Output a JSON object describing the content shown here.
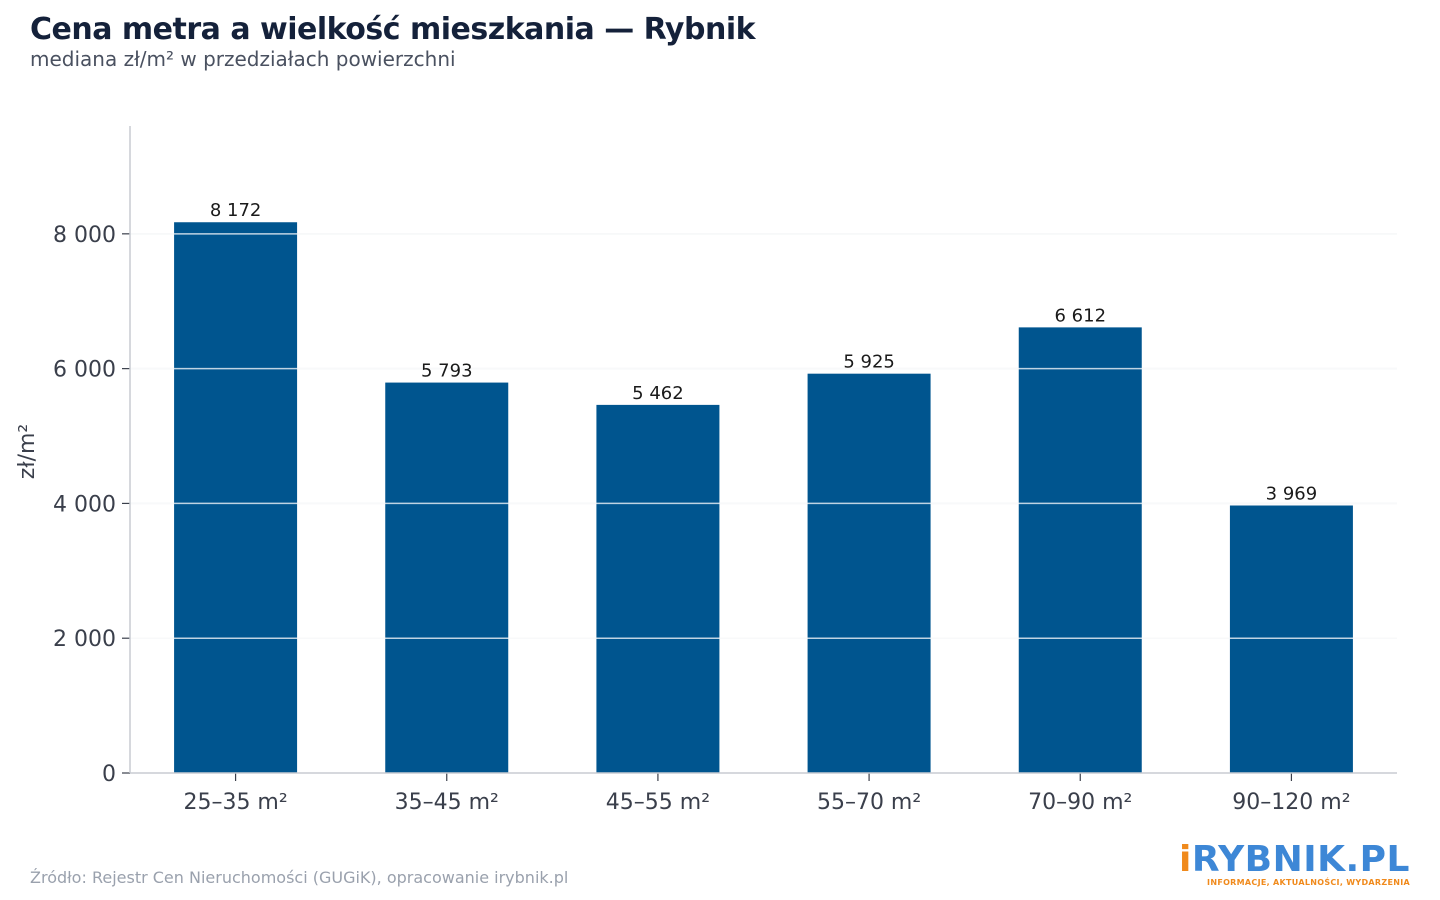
{
  "header": {
    "title": "Cena metra a wielkość mieszkania — Rybnik",
    "subtitle": "mediana zł/m² w przedziałach powierzchni"
  },
  "footer": {
    "source": "Źródło: Rejestr Cen Nieruchomości (GUGiK), opracowanie irybnik.pl"
  },
  "logo": {
    "first_letter": "i",
    "rest": "RYBNIK.PL",
    "tagline": "INFORMACJE, AKTUALNOŚCI, WYDARZENIA"
  },
  "colors": {
    "bar": "#00558f",
    "grid": "#e4e6ea",
    "axis": "#c8ccd2"
  },
  "chart_data": {
    "type": "bar",
    "title": "Cena metra a wielkość mieszkania — Rybnik",
    "subtitle": "mediana zł/m² w przedziałach powierzchni",
    "xlabel": "",
    "ylabel": "zł/m²",
    "categories": [
      "25–35 m²",
      "35–45 m²",
      "45–55 m²",
      "55–70 m²",
      "70–90 m²",
      "90–120 m²"
    ],
    "values": [
      8172,
      5793,
      5462,
      5925,
      6612,
      3969
    ],
    "value_labels": [
      "8 172",
      "5 793",
      "5 462",
      "5 925",
      "6 612",
      "3 969"
    ],
    "ylim": [
      0,
      9600
    ],
    "yticks": [
      0,
      2000,
      4000,
      6000,
      8000
    ],
    "ytick_labels": [
      "0",
      "2 000",
      "4 000",
      "6 000",
      "8 000"
    ],
    "grid": true,
    "legend": "none"
  }
}
